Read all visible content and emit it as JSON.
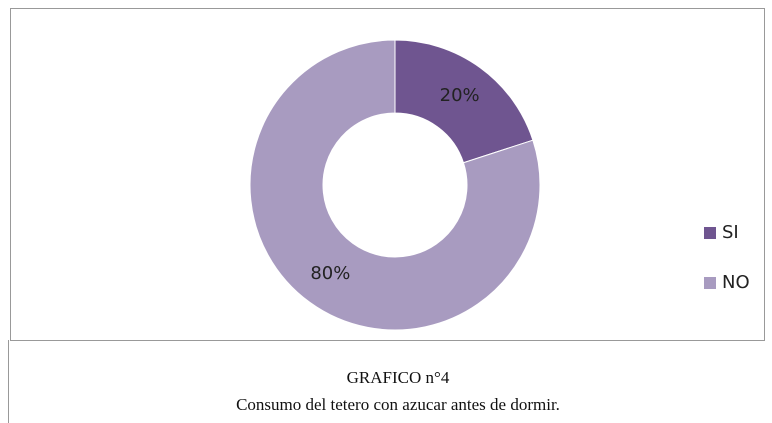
{
  "chart_data": {
    "type": "donut",
    "title": "GRAFICO n°4",
    "subtitle": "Consumo del tetero con azucar antes de dormir.",
    "categories": [
      "SI",
      "NO"
    ],
    "values": [
      20,
      80
    ],
    "value_labels": [
      "20%",
      "80%"
    ],
    "colors": [
      "#6f5590",
      "#a89bc0"
    ],
    "legend": "right"
  }
}
